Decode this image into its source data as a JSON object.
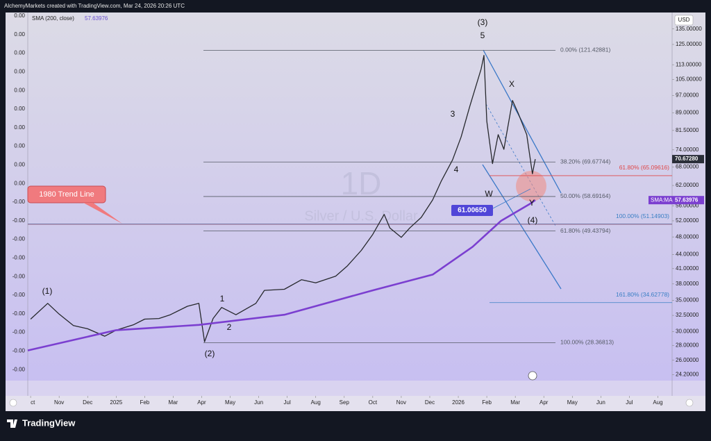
{
  "header": "AlchemyMarkets created with TradingView.com, Mar 24, 2026 20:26 UTC",
  "chart_data": {
    "type": "line",
    "interval": "1D",
    "currency": "USD",
    "indicator": "SMA (200, close)",
    "log_scale": true,
    "xlim": [
      -0.1,
      22.5
    ],
    "ylim": [
      23.5,
      146.5
    ],
    "xticks": [
      {
        "value": 0,
        "label": "ct"
      },
      {
        "value": 1,
        "label": "Nov"
      },
      {
        "value": 2,
        "label": "Dec"
      },
      {
        "value": 3,
        "label": "2025"
      },
      {
        "value": 4,
        "label": "Feb"
      },
      {
        "value": 5,
        "label": "Mar"
      },
      {
        "value": 6,
        "label": "Apr"
      },
      {
        "value": 7,
        "label": "May"
      },
      {
        "value": 8,
        "label": "Jun"
      },
      {
        "value": 9,
        "label": "Jul"
      },
      {
        "value": 10,
        "label": "Aug"
      },
      {
        "value": 11,
        "label": "Sep"
      },
      {
        "value": 12,
        "label": "Oct"
      },
      {
        "value": 13,
        "label": "Nov"
      },
      {
        "value": 14,
        "label": "Dec"
      },
      {
        "value": 15,
        "label": "2026"
      },
      {
        "value": 16,
        "label": "Feb"
      },
      {
        "value": 17,
        "label": "Mar"
      },
      {
        "value": 18,
        "label": "Apr"
      },
      {
        "value": 19,
        "label": "May"
      },
      {
        "value": 20,
        "label": "Jun"
      },
      {
        "value": 21,
        "label": "Jul"
      },
      {
        "value": 22,
        "label": "Aug"
      }
    ],
    "yticks": [
      {
        "value": 135,
        "label": "135.00000"
      },
      {
        "value": 125,
        "label": "125.00000"
      },
      {
        "value": 113,
        "label": "113.00000"
      },
      {
        "value": 105,
        "label": "105.00000"
      },
      {
        "value": 97,
        "label": "97.00000"
      },
      {
        "value": 89,
        "label": "89.00000"
      },
      {
        "value": 81.5,
        "label": "81.50000"
      },
      {
        "value": 74,
        "label": "74.00000"
      },
      {
        "value": 68,
        "label": "68.00000"
      },
      {
        "value": 62,
        "label": "62.00000"
      },
      {
        "value": 56,
        "label": "56.00000"
      },
      {
        "value": 52,
        "label": "52.00000"
      },
      {
        "value": 48,
        "label": "48.00000"
      },
      {
        "value": 44,
        "label": "44.00000"
      },
      {
        "value": 41,
        "label": "41.00000"
      },
      {
        "value": 38,
        "label": "38.00000"
      },
      {
        "value": 35,
        "label": "35.00000"
      },
      {
        "value": 32.5,
        "label": "32.50000"
      },
      {
        "value": 30,
        "label": "30.00000"
      },
      {
        "value": 28,
        "label": "28.00000"
      },
      {
        "value": 26,
        "label": "26.00000"
      },
      {
        "value": 24.2,
        "label": "24.20000"
      }
    ],
    "left_scale_labels": [
      "0.00",
      "0.00",
      "0.00",
      "0.00",
      "0.00",
      "0.00",
      "0.00",
      "0.00",
      "0.00",
      "0.00",
      "-0.00",
      "-0.00",
      "-0.00",
      "-0.00",
      "-0.00",
      "-0.00",
      "-0.00",
      "-0.00",
      "-0.00",
      "-0.00"
    ],
    "series": [
      {
        "name": "Silver / U.S. Dollar",
        "color": "#26282c",
        "x": [
          0,
          0.6,
          1,
          1.5,
          2,
          2.6,
          3,
          3.6,
          4,
          4.5,
          4.9,
          5.5,
          5.9,
          6.1,
          6.4,
          6.7,
          7.2,
          7.9,
          8.2,
          8.9,
          9.5,
          10,
          10.7,
          11.1,
          11.6,
          12,
          12.4,
          12.6,
          13,
          13.3,
          13.7,
          14.1,
          14.4,
          14.8,
          15.1,
          15.4,
          15.8,
          15.9,
          16,
          16.2,
          16.4,
          16.6,
          16.9,
          17.1,
          17.4,
          17.6,
          17.7
        ],
        "values": [
          31.9,
          34.5,
          32.7,
          30.9,
          30.4,
          29.3,
          30.2,
          31,
          31.9,
          32,
          32.6,
          34,
          34.5,
          28.5,
          32,
          33.8,
          32.6,
          34.5,
          36.8,
          37,
          38.8,
          38.2,
          39.5,
          41.5,
          44.9,
          48.6,
          53.7,
          50.2,
          47.9,
          50.2,
          52.9,
          57.7,
          63.3,
          70.4,
          78.9,
          91.8,
          110.6,
          118.4,
          85.3,
          69.1,
          79.8,
          74.2,
          94.6,
          88.8,
          79.8,
          65.7,
          70.6728
        ],
        "value_labels_last": "70.67280"
      },
      {
        "name": "SMA:MA",
        "color": "#7b3fd0",
        "x": [
          -0.1,
          3,
          5.9,
          8.9,
          12,
          14.1,
          15.5,
          16.5,
          17.5,
          17.7
        ],
        "values": [
          27.3,
          30.2,
          31.0,
          32.6,
          36.8,
          39.8,
          45.7,
          52.0,
          56.5,
          57.63976
        ]
      }
    ],
    "fib_levels": [
      {
        "value": 121.42881,
        "label": "0.00% (121.42881)",
        "color": "#555a66"
      },
      {
        "value": 69.67744,
        "label": "38.20% (69.67744)",
        "color": "#555a66"
      },
      {
        "value": 58.69164,
        "label": "50.00% (58.69164)",
        "color": "#555a66"
      },
      {
        "value": 49.43794,
        "label": "61.80% (49.43794)",
        "color": "#555a66"
      },
      {
        "value": 28.36813,
        "label": "100.00% (28.36813)",
        "color": "#555a66"
      },
      {
        "value": 65.09616,
        "label": "61.80% (65.09616)",
        "color": "#e04848"
      },
      {
        "value": 51.14903,
        "label": "100.00% (51.14903)",
        "color": "#3a7fc4"
      },
      {
        "value": 34.62778,
        "label": "161.80% (34.62778)",
        "color": "#3a7fc4"
      }
    ],
    "trend_line": {
      "label": "1980 Trend Line",
      "value": 51.15,
      "color": "#e05050"
    },
    "price_tag": {
      "value": 61.0065,
      "label": "61.00650"
    },
    "annotations": [
      "(3)",
      "5",
      "3",
      "4",
      "X",
      "W",
      "Y",
      "(4)",
      "(1)",
      "1",
      "2",
      "(2)"
    ]
  },
  "footer": {
    "brand": "TradingView"
  }
}
